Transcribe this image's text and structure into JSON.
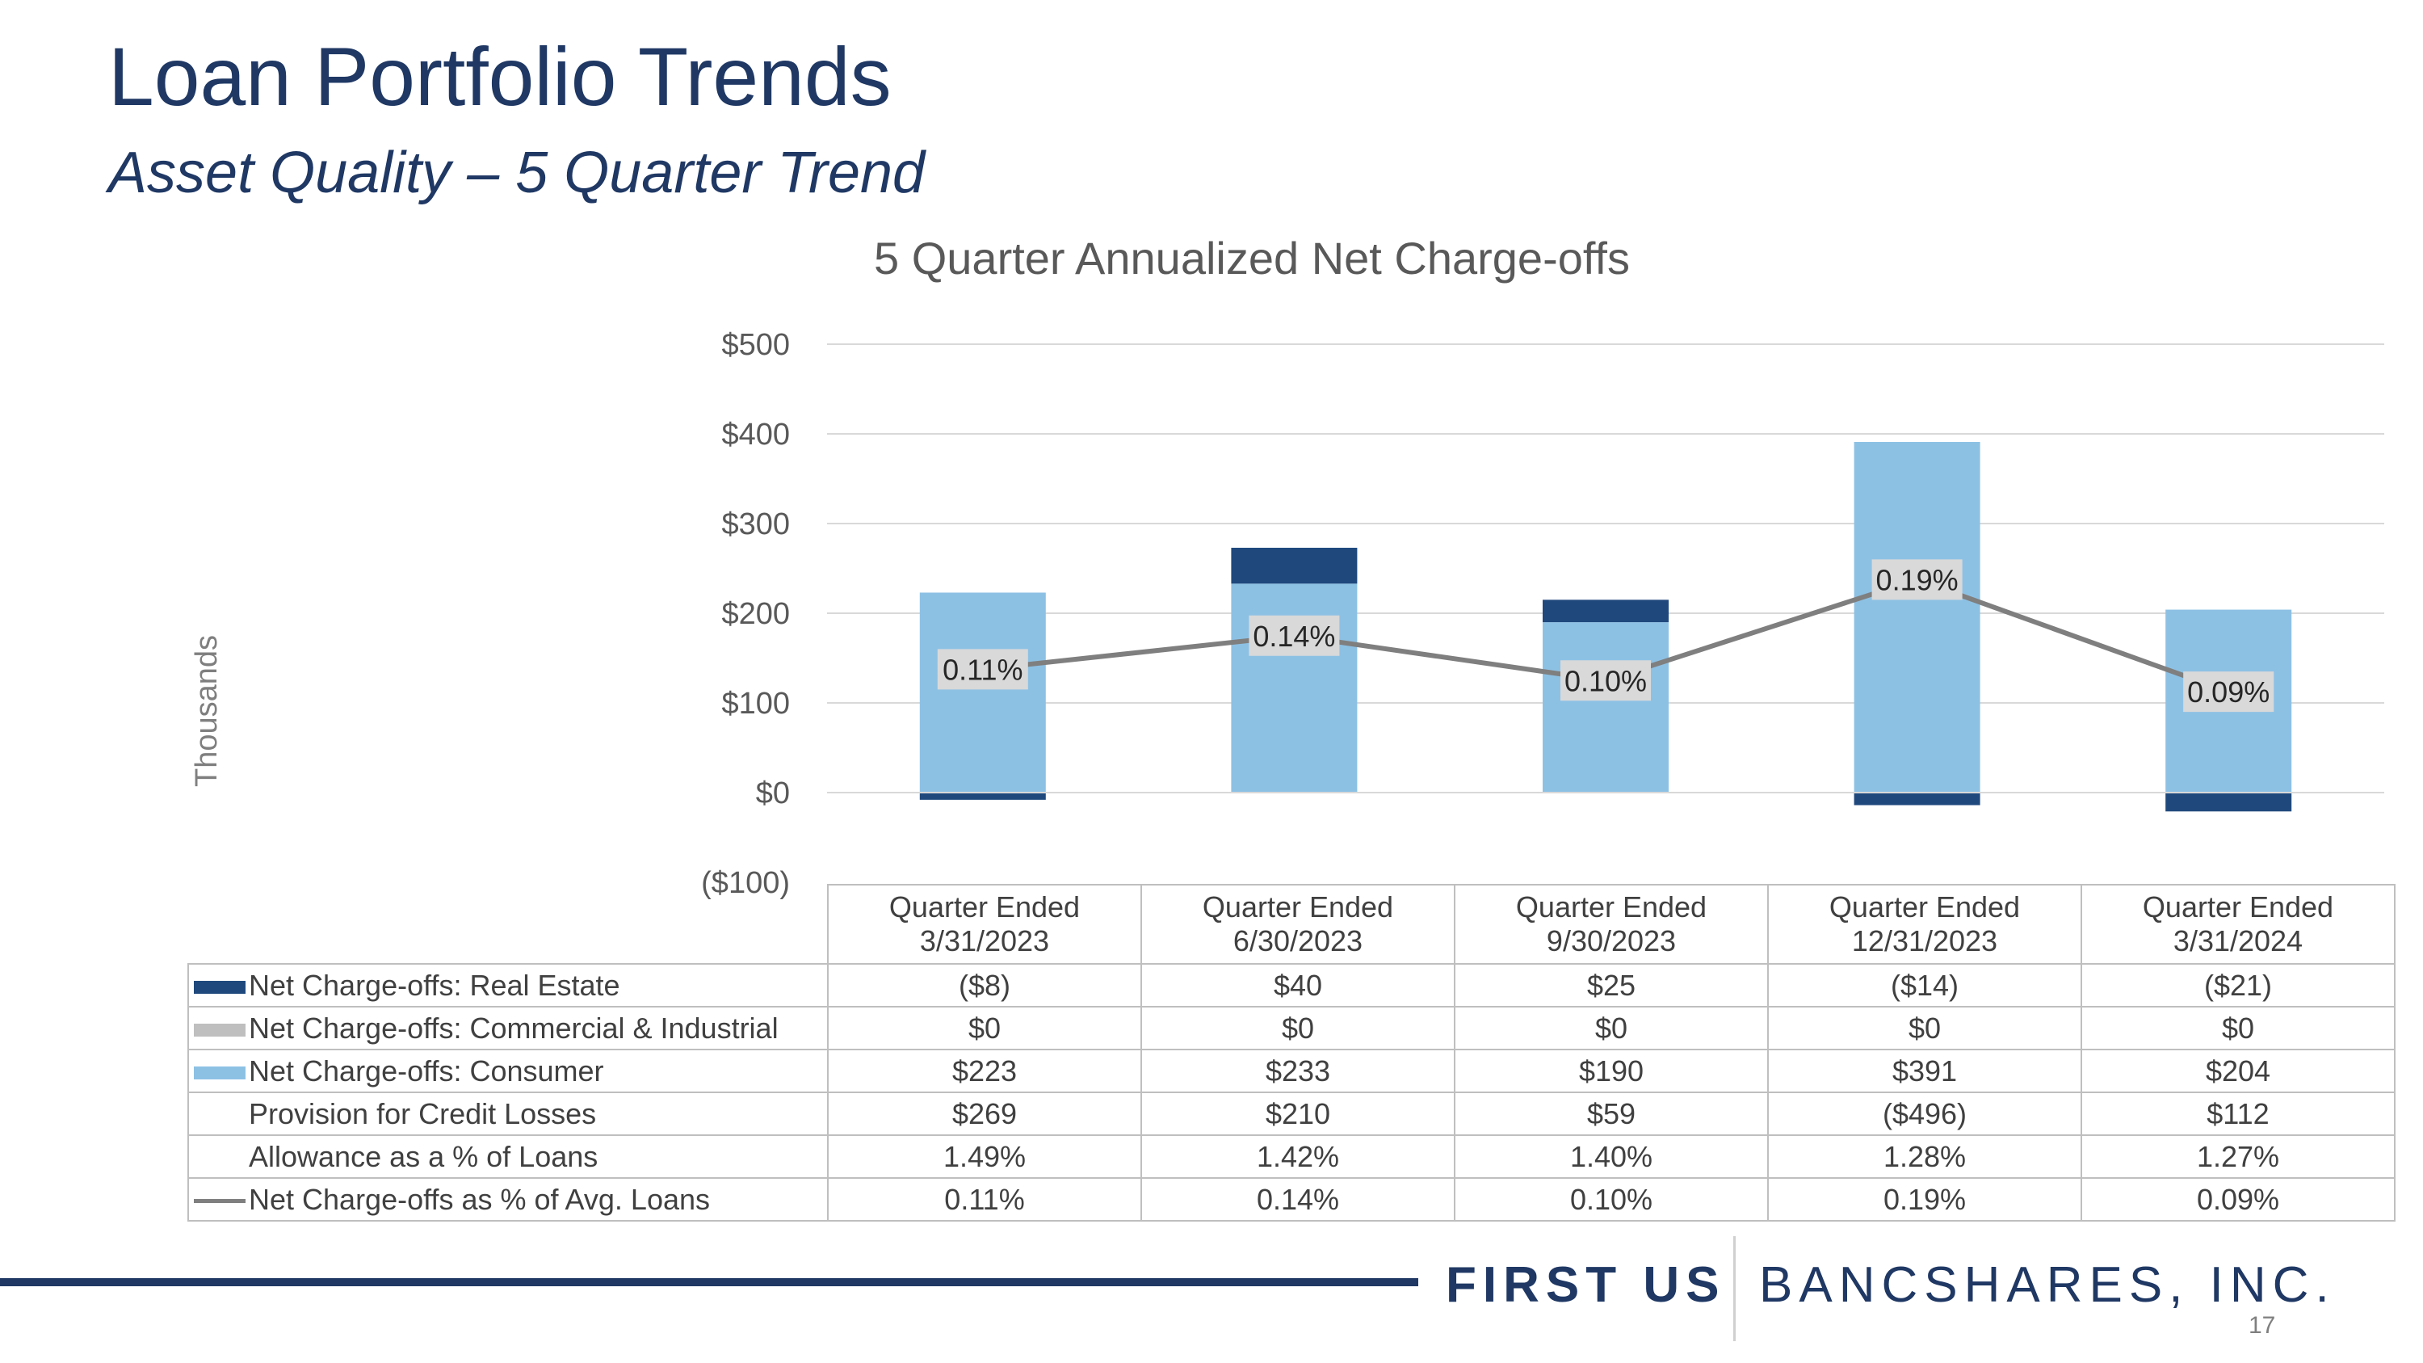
{
  "slide": {
    "title": "Loan Portfolio Trends",
    "subtitle": "Asset Quality – 5 Quarter Trend",
    "page_number": "17",
    "logo_first": "FIRST US",
    "logo_bancshares": "BANCSHARES, INC."
  },
  "colors": {
    "navy": "#1f3864",
    "real_estate": "#1f497d",
    "commercial": "#bfbfbf",
    "consumer": "#8dc1e4",
    "line": "#7f7f7f"
  },
  "chart_data": {
    "type": "bar",
    "stacked": true,
    "title": "5 Quarter Annualized Net Charge-offs",
    "ylabel": "Thousands",
    "ylim": [
      -100,
      500
    ],
    "yticks": [
      500,
      400,
      300,
      200,
      100,
      0,
      -100
    ],
    "ytick_labels": [
      "$500",
      "$400",
      "$300",
      "$200",
      "$100",
      "$0",
      "($100)"
    ],
    "categories": [
      [
        "Quarter Ended",
        "3/31/2023"
      ],
      [
        "Quarter Ended",
        "6/30/2023"
      ],
      [
        "Quarter Ended",
        "9/30/2023"
      ],
      [
        "Quarter Ended",
        "12/31/2023"
      ],
      [
        "Quarter Ended",
        "3/31/2024"
      ]
    ],
    "series": [
      {
        "name": "Net Charge-offs: Real Estate",
        "kind": "bar",
        "color": "#1f497d",
        "values": [
          -8,
          40,
          25,
          -14,
          -21
        ]
      },
      {
        "name": "Net Charge-offs: Commercial & Industrial",
        "kind": "bar",
        "color": "#bfbfbf",
        "values": [
          0,
          0,
          0,
          0,
          0
        ]
      },
      {
        "name": "Net Charge-offs: Consumer",
        "kind": "bar",
        "color": "#8dc1e4",
        "values": [
          223,
          233,
          190,
          391,
          204
        ]
      },
      {
        "name": "Net Charge-offs as % of Avg. Loans",
        "kind": "line",
        "color": "#7f7f7f",
        "values": [
          0.11,
          0.14,
          0.1,
          0.19,
          0.09
        ],
        "labels": [
          "0.11%",
          "0.14%",
          "0.10%",
          "0.19%",
          "0.09%"
        ]
      }
    ]
  },
  "table": {
    "rows": [
      {
        "label": "Net Charge-offs: Real Estate",
        "key": "bar",
        "color": "#1f497d",
        "cells": [
          "($8)",
          "$40",
          "$25",
          "($14)",
          "($21)"
        ]
      },
      {
        "label": "Net Charge-offs: Commercial & Industrial",
        "key": "bar",
        "color": "#bfbfbf",
        "cells": [
          "$0",
          "$0",
          "$0",
          "$0",
          "$0"
        ]
      },
      {
        "label": "Net Charge-offs: Consumer",
        "key": "bar",
        "color": "#8dc1e4",
        "cells": [
          "$223",
          "$233",
          "$190",
          "$391",
          "$204"
        ]
      },
      {
        "label": "Provision for Credit Losses",
        "key": "none",
        "color": "",
        "cells": [
          "$269",
          "$210",
          "$59",
          "($496)",
          "$112"
        ]
      },
      {
        "label": "Allowance as a % of Loans",
        "key": "none",
        "color": "",
        "cells": [
          "1.49%",
          "1.42%",
          "1.40%",
          "1.28%",
          "1.27%"
        ]
      },
      {
        "label": "Net Charge-offs as % of Avg. Loans",
        "key": "line",
        "color": "#7f7f7f",
        "cells": [
          "0.11%",
          "0.14%",
          "0.10%",
          "0.19%",
          "0.09%"
        ]
      }
    ]
  }
}
